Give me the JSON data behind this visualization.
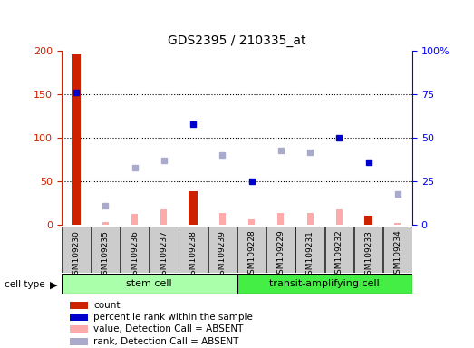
{
  "title": "GDS2395 / 210335_at",
  "samples": [
    "GSM109230",
    "GSM109235",
    "GSM109236",
    "GSM109237",
    "GSM109238",
    "GSM109239",
    "GSM109228",
    "GSM109229",
    "GSM109231",
    "GSM109232",
    "GSM109233",
    "GSM109234"
  ],
  "count": [
    195,
    0,
    0,
    0,
    38,
    0,
    0,
    0,
    0,
    0,
    10,
    0
  ],
  "percentile_rank": [
    152,
    null,
    null,
    null,
    115,
    null,
    50,
    null,
    null,
    100,
    72,
    null
  ],
  "value_absent": [
    null,
    3,
    12,
    17,
    null,
    13,
    6,
    13,
    13,
    17,
    null,
    2
  ],
  "rank_absent": [
    null,
    22,
    65,
    74,
    null,
    80,
    null,
    85,
    83,
    null,
    null,
    35
  ],
  "left_ylim": [
    0,
    200
  ],
  "left_yticks": [
    0,
    50,
    100,
    150,
    200
  ],
  "right_yticks": [
    0,
    25,
    50,
    75,
    100
  ],
  "right_ytick_positions": [
    0,
    50,
    100,
    150,
    200
  ],
  "right_yticklabels": [
    "0",
    "25",
    "50",
    "75",
    "100%"
  ],
  "dotted_lines": [
    50,
    100,
    150
  ],
  "color_count": "#cc2200",
  "color_percentile": "#0000cc",
  "color_value_absent": "#ffaaaa",
  "color_rank_absent": "#aaaacc",
  "stem_cell_color": "#aaffaa",
  "transit_cell_color": "#44ee44",
  "bg_color": "#ffffff",
  "bar_bg": "#cccccc",
  "n_stem": 6,
  "n_transit": 6
}
